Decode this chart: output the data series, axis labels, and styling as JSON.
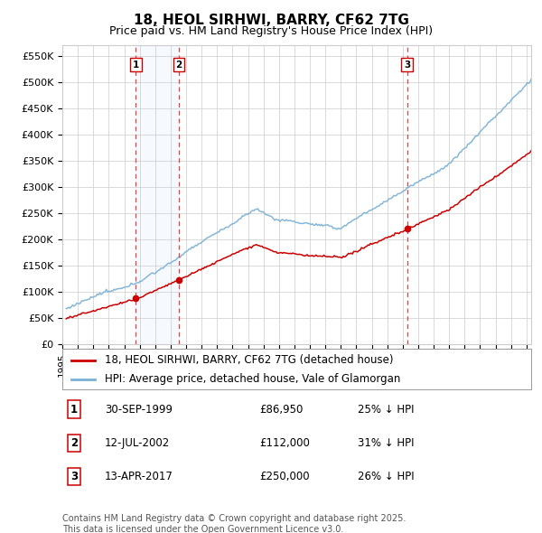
{
  "title": "18, HEOL SIRHWI, BARRY, CF62 7TG",
  "subtitle": "Price paid vs. HM Land Registry's House Price Index (HPI)",
  "ylabel_ticks": [
    "£0",
    "£50K",
    "£100K",
    "£150K",
    "£200K",
    "£250K",
    "£300K",
    "£350K",
    "£400K",
    "£450K",
    "£500K",
    "£550K"
  ],
  "ytick_values": [
    0,
    50000,
    100000,
    150000,
    200000,
    250000,
    300000,
    350000,
    400000,
    450000,
    500000,
    550000
  ],
  "ylim": [
    0,
    570000
  ],
  "xlim_start": 1995.3,
  "xlim_end": 2025.3,
  "background_color": "#ffffff",
  "grid_color": "#cccccc",
  "hpi_color": "#7ab0d4",
  "price_color": "#cc0000",
  "shade_color": "#ddeeff",
  "purchases": [
    {
      "label": "1",
      "date_num": 1999.75,
      "price": 86950,
      "text": "30-SEP-1999",
      "amount": "£86,950",
      "hpi_rel": "25% ↓ HPI"
    },
    {
      "label": "2",
      "date_num": 2002.53,
      "price": 112000,
      "text": "12-JUL-2002",
      "amount": "£112,000",
      "hpi_rel": "31% ↓ HPI"
    },
    {
      "label": "3",
      "date_num": 2017.28,
      "price": 250000,
      "text": "13-APR-2017",
      "amount": "£250,000",
      "hpi_rel": "26% ↓ HPI"
    }
  ],
  "legend_entries": [
    {
      "label": "18, HEOL SIRHWI, BARRY, CF62 7TG (detached house)",
      "color": "#cc0000"
    },
    {
      "label": "HPI: Average price, detached house, Vale of Glamorgan",
      "color": "#7ab0d4"
    }
  ],
  "footer_text": "Contains HM Land Registry data © Crown copyright and database right 2025.\nThis data is licensed under the Open Government Licence v3.0.",
  "title_fontsize": 11,
  "subtitle_fontsize": 9,
  "axis_fontsize": 8,
  "legend_fontsize": 8.5,
  "footer_fontsize": 7
}
